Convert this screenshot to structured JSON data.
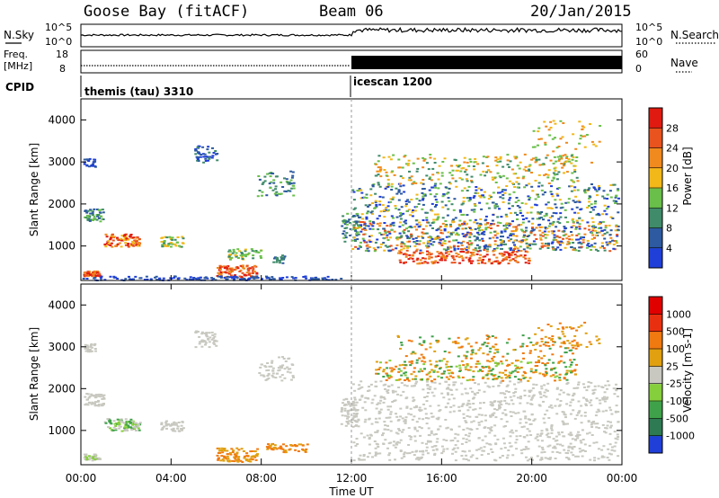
{
  "header": {
    "station": "Goose Bay (fitACF)",
    "beam": "Beam 06",
    "date": "20/Jan/2015"
  },
  "noise_panel": {
    "left_label": "N.Sky",
    "right_label": "N.Search",
    "left_ticks": [
      "10^5",
      "10^0"
    ],
    "right_ticks": [
      "10^5",
      "10^0"
    ]
  },
  "freq_panel": {
    "left_label_1": "Freq.",
    "left_label_2": "[MHz]",
    "right_label": "Nave",
    "left_ticks": [
      "18",
      "8"
    ],
    "right_ticks": [
      "60",
      "0"
    ]
  },
  "cpid": {
    "label": "CPID",
    "segments": [
      {
        "name": "themis (tau) 3310",
        "start": "00:00",
        "end": "12:00"
      },
      {
        "name": "icescan 1200",
        "start": "12:00",
        "end": "24:00"
      }
    ]
  },
  "x_axis": {
    "label": "Time UT",
    "ticks": [
      "00:00",
      "04:00",
      "08:00",
      "12:00",
      "16:00",
      "20:00",
      "00:00"
    ]
  },
  "colors": {
    "power_scale": [
      "#1f3fd8",
      "#2d5aa0",
      "#3f8b6a",
      "#6abf4b",
      "#f2b81a",
      "#f08a1e",
      "#e8531e",
      "#e01a10"
    ],
    "velocity_scale": [
      "#1f3fd8",
      "#2e7a52",
      "#3fa24a",
      "#86cf3c",
      "#c8c8c0",
      "#e0a010",
      "#f07a10",
      "#e83010",
      "#e00000"
    ]
  },
  "chart_data": [
    {
      "type": "heatmap",
      "title": "",
      "xlabel": "",
      "ylabel": "Slant Range [km]",
      "xlim": [
        0,
        24
      ],
      "ylim": [
        180,
        4500
      ],
      "y_ticks": [
        "1000",
        "2000",
        "3000",
        "4000"
      ],
      "colorbar": {
        "label": "Power [dB]",
        "ticks": [
          "4",
          "8",
          "12",
          "16",
          "20",
          "24",
          "28"
        ],
        "range": [
          0,
          30
        ]
      },
      "grid": false
    },
    {
      "type": "heatmap",
      "title": "",
      "xlabel": "Time UT",
      "ylabel": "Slant Range [km]",
      "xlim": [
        0,
        24
      ],
      "ylim": [
        180,
        4500
      ],
      "y_ticks": [
        "1000",
        "2000",
        "3000",
        "4000"
      ],
      "colorbar": {
        "label": "Velocity [m s-1]",
        "ticks": [
          "1000",
          "500",
          "100",
          "25",
          "-25",
          "-100",
          "-500",
          "-1000"
        ]
      },
      "grid": false
    }
  ]
}
